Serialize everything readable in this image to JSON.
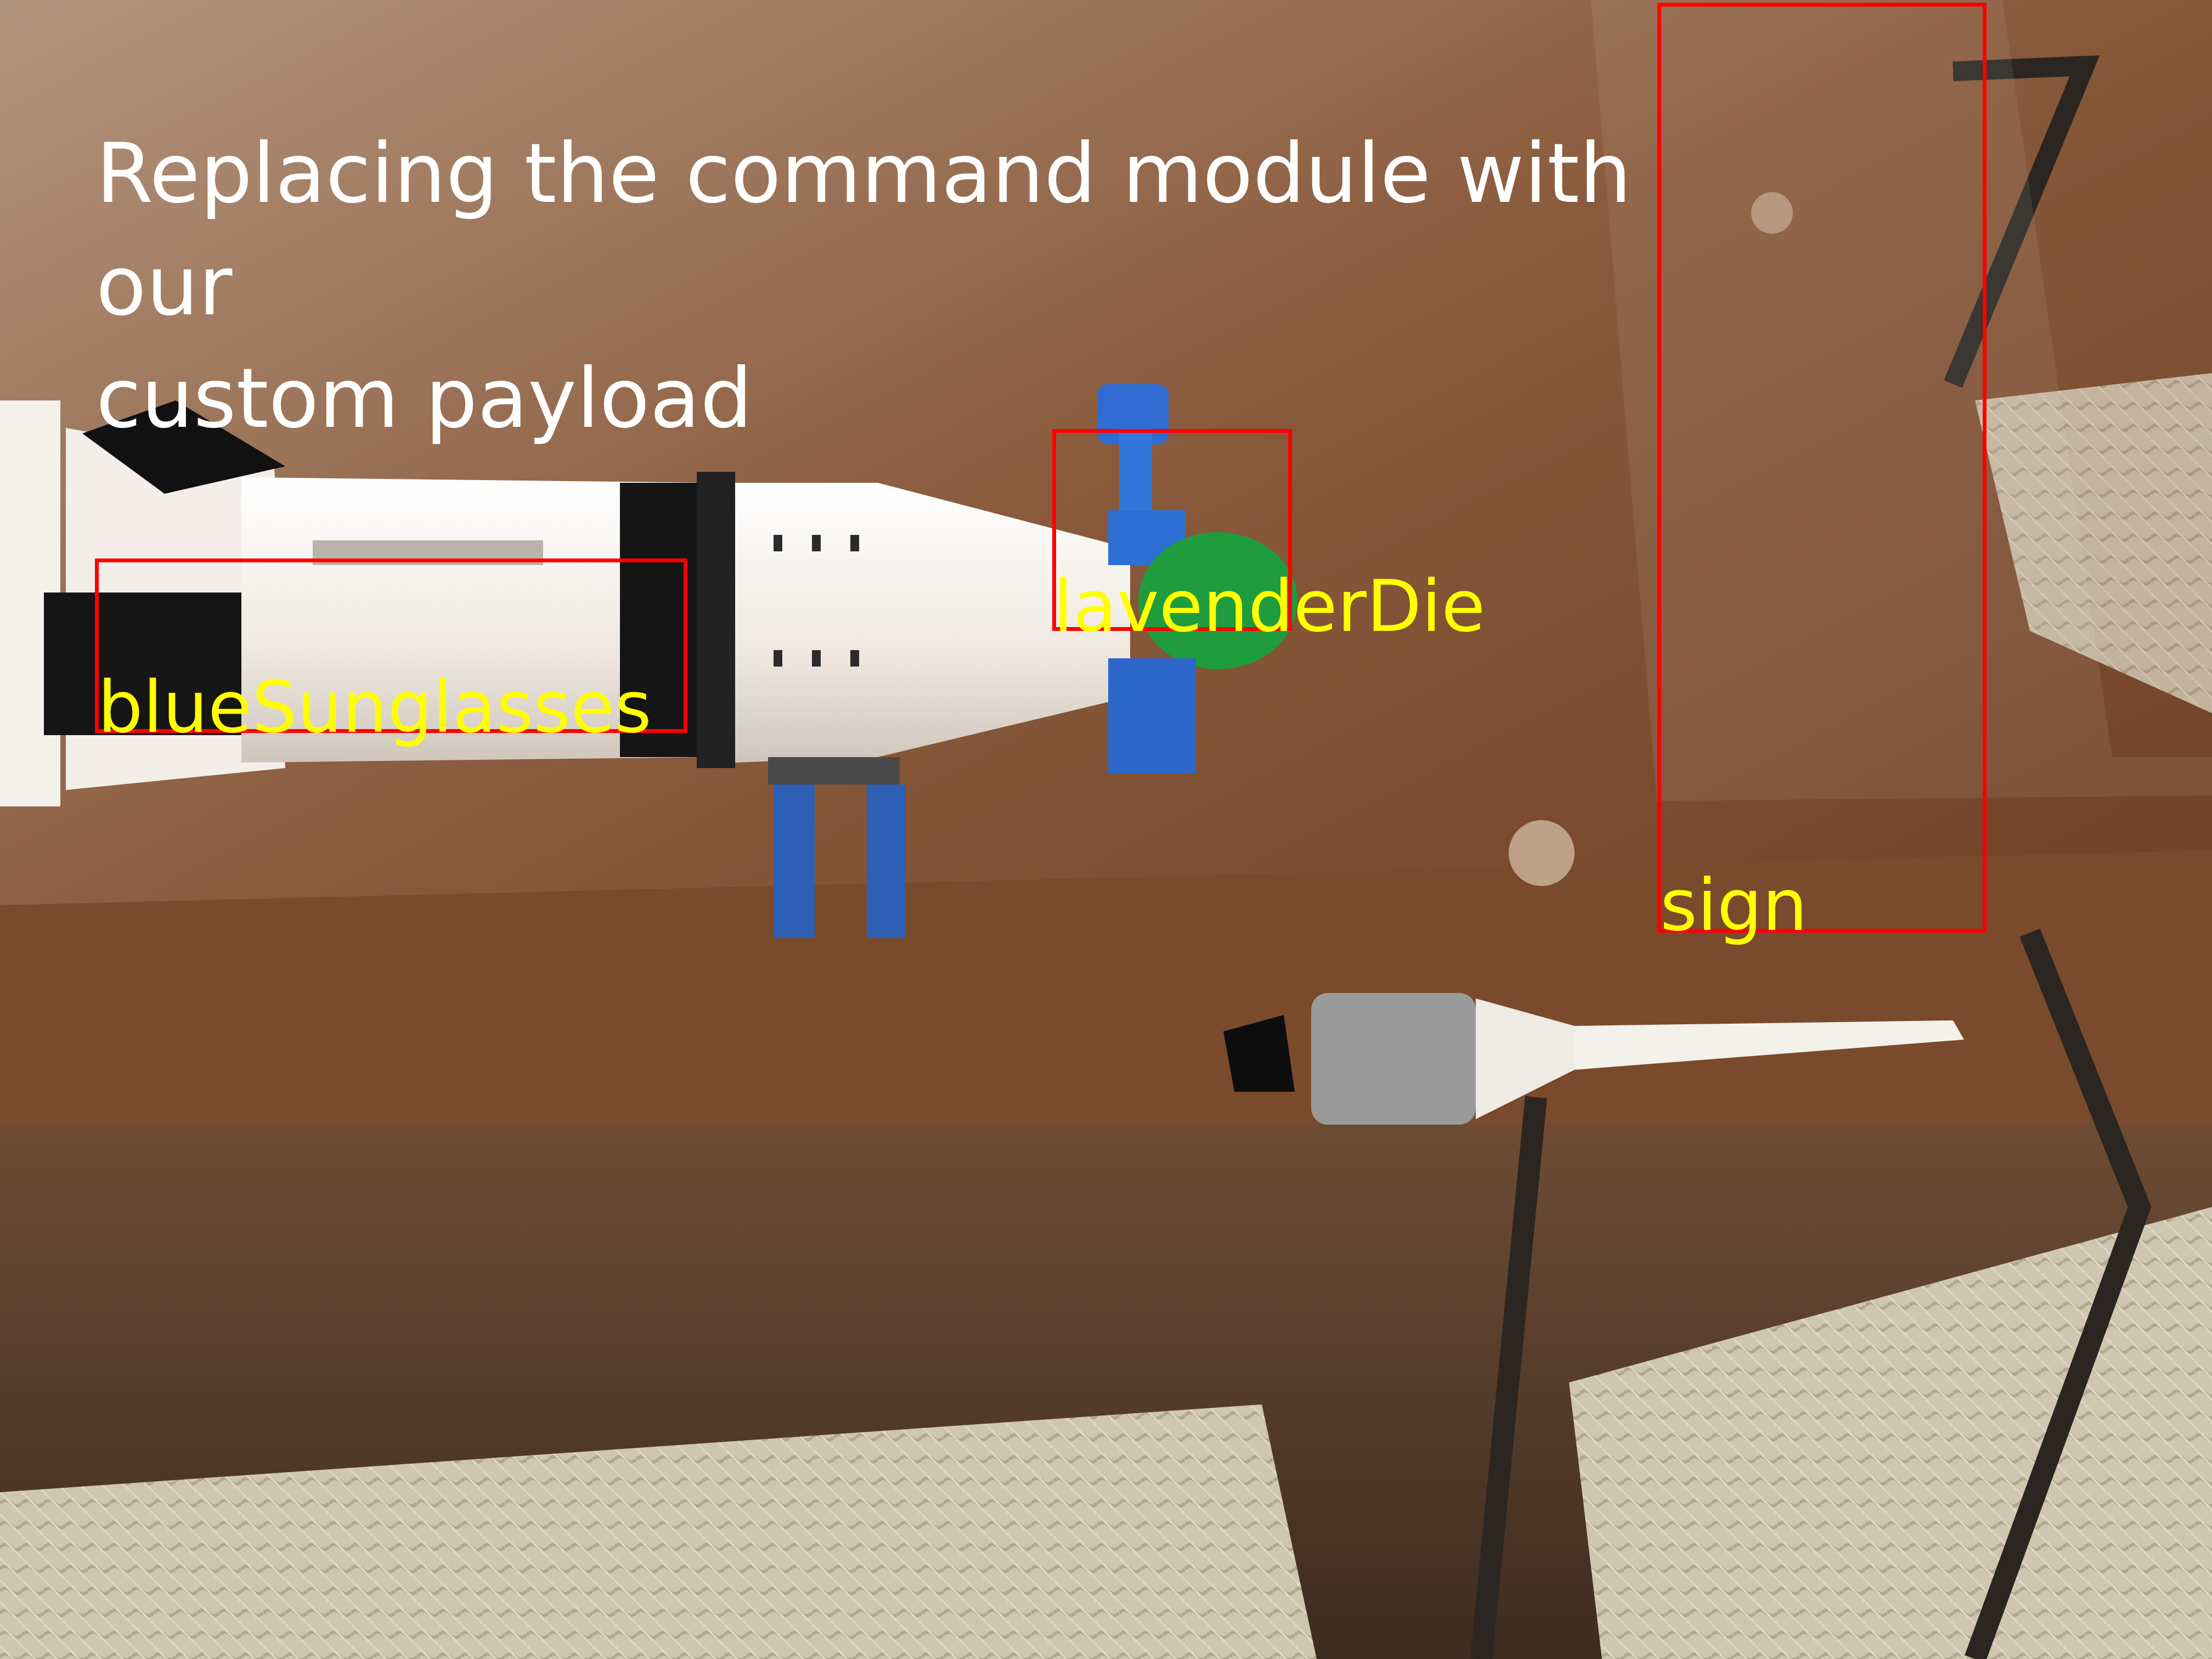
{
  "photo": {
    "subject": "lego-saturn-v-rocket-on-glass-table"
  },
  "caption": {
    "line1": "Replacing the command module with our",
    "line2": "custom payload"
  },
  "detections": [
    {
      "label": "blueSunglasses"
    },
    {
      "label": "lavenderDie"
    },
    {
      "label": "sign"
    }
  ],
  "colors": {
    "box": "#ff0000",
    "label": "#ffff00",
    "caption": "#ffffff"
  }
}
